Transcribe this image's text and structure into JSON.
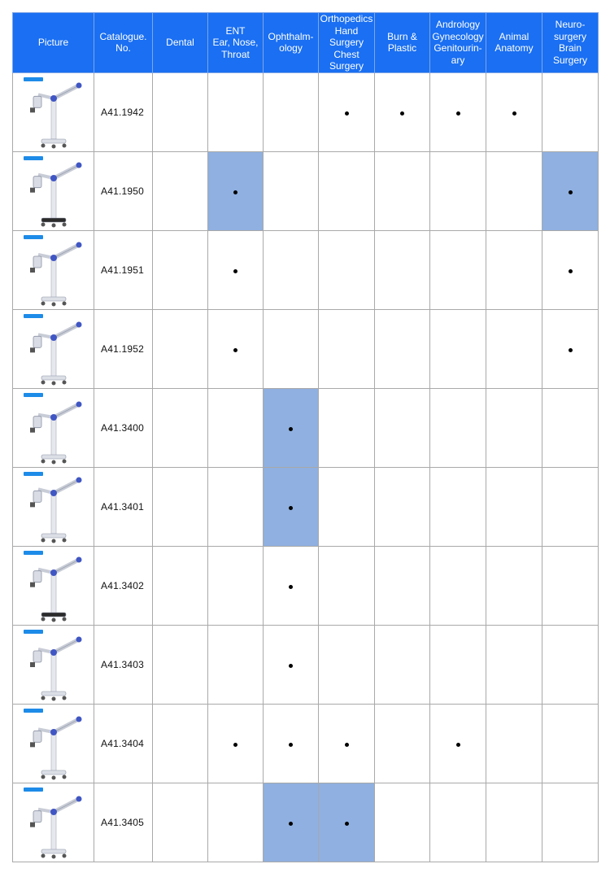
{
  "headers": {
    "picture": "Picture",
    "catalogue": [
      "Catalogue.",
      "No."
    ],
    "dental": [
      "Dental"
    ],
    "ent": [
      "ENT",
      "Ear, Nose,",
      "Throat"
    ],
    "ophthalmology": [
      "Ophthalm-",
      "ology"
    ],
    "ortho": [
      "Orthopedics",
      "Hand",
      "Surgery",
      "Chest",
      "Surgery"
    ],
    "burn": [
      "Burn &",
      "Plastic"
    ],
    "andrology": [
      "Andrology",
      "Gynecology",
      "Genitourin-",
      "ary"
    ],
    "animal": [
      "Animal",
      "Anatomy"
    ],
    "neuro": [
      "Neuro-",
      "surgery",
      "Brain",
      "Surgery"
    ]
  },
  "columns": [
    "dental",
    "ent",
    "ophthalmology",
    "ortho",
    "burn",
    "andrology",
    "animal",
    "neuro"
  ],
  "rows": [
    {
      "catalogue": "A41.1942",
      "marks": [
        0,
        0,
        0,
        1,
        1,
        1,
        1,
        0
      ],
      "highlight": [
        0,
        0,
        0,
        0,
        0,
        0,
        0,
        0
      ],
      "image": "surgical-microscope-1942"
    },
    {
      "catalogue": "A41.1950",
      "marks": [
        0,
        1,
        0,
        0,
        0,
        0,
        0,
        1
      ],
      "highlight": [
        0,
        1,
        0,
        0,
        0,
        0,
        0,
        1
      ],
      "image": "surgical-microscope-1950"
    },
    {
      "catalogue": "A41.1951",
      "marks": [
        0,
        1,
        0,
        0,
        0,
        0,
        0,
        1
      ],
      "highlight": [
        0,
        0,
        0,
        0,
        0,
        0,
        0,
        0
      ],
      "image": "surgical-microscope-1951"
    },
    {
      "catalogue": "A41.1952",
      "marks": [
        0,
        1,
        0,
        0,
        0,
        0,
        0,
        1
      ],
      "highlight": [
        0,
        0,
        0,
        0,
        0,
        0,
        0,
        0
      ],
      "image": "surgical-microscope-1952"
    },
    {
      "catalogue": "A41.3400",
      "marks": [
        0,
        0,
        1,
        0,
        0,
        0,
        0,
        0
      ],
      "highlight": [
        0,
        0,
        1,
        0,
        0,
        0,
        0,
        0
      ],
      "image": "surgical-microscope-3400"
    },
    {
      "catalogue": "A41.3401",
      "marks": [
        0,
        0,
        1,
        0,
        0,
        0,
        0,
        0
      ],
      "highlight": [
        0,
        0,
        1,
        0,
        0,
        0,
        0,
        0
      ],
      "image": "surgical-microscope-3401"
    },
    {
      "catalogue": "A41.3402",
      "marks": [
        0,
        0,
        1,
        0,
        0,
        0,
        0,
        0
      ],
      "highlight": [
        0,
        0,
        0,
        0,
        0,
        0,
        0,
        0
      ],
      "image": "surgical-microscope-3402"
    },
    {
      "catalogue": "A41.3403",
      "marks": [
        0,
        0,
        1,
        0,
        0,
        0,
        0,
        0
      ],
      "highlight": [
        0,
        0,
        0,
        0,
        0,
        0,
        0,
        0
      ],
      "image": "surgical-microscope-3403"
    },
    {
      "catalogue": "A41.3404",
      "marks": [
        0,
        1,
        1,
        1,
        0,
        1,
        0,
        0
      ],
      "highlight": [
        0,
        0,
        0,
        0,
        0,
        0,
        0,
        0
      ],
      "image": "surgical-microscope-3404"
    },
    {
      "catalogue": "A41.3405",
      "marks": [
        0,
        0,
        1,
        1,
        0,
        0,
        0,
        0
      ],
      "highlight": [
        0,
        0,
        1,
        1,
        0,
        0,
        0,
        0
      ],
      "image": "surgical-microscope-3405"
    }
  ],
  "colors": {
    "header_bg": "#1a6ff2",
    "highlight": "#8fb0e0",
    "grid": "#a9a9a9"
  }
}
